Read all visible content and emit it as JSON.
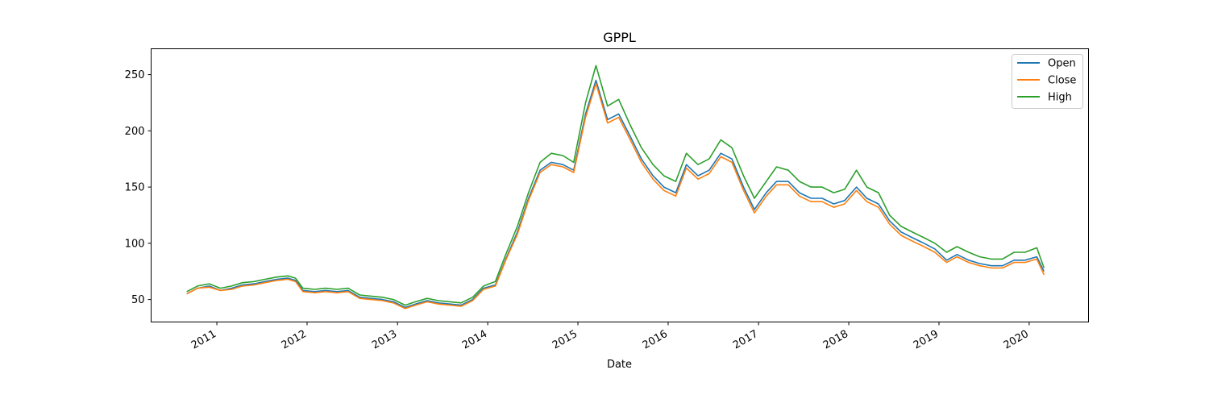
{
  "chart_data": {
    "type": "line",
    "title": "GPPL",
    "xlabel": "Date",
    "ylabel": "",
    "xlim": [
      "2010-04-10",
      "2020-08-28"
    ],
    "ylim": [
      30,
      273
    ],
    "x_ticks": [
      "2011",
      "2012",
      "2013",
      "2014",
      "2015",
      "2016",
      "2017",
      "2018",
      "2019",
      "2020"
    ],
    "y_ticks": [
      50,
      100,
      150,
      200,
      250
    ],
    "grid": false,
    "legend": "top-right",
    "x": [
      "2010-09-01",
      "2010-10-15",
      "2010-12-01",
      "2011-01-15",
      "2011-03-01",
      "2011-04-15",
      "2011-06-01",
      "2011-07-15",
      "2011-09-01",
      "2011-10-15",
      "2011-11-15",
      "2011-12-15",
      "2012-02-01",
      "2012-03-15",
      "2012-05-01",
      "2012-06-15",
      "2012-08-01",
      "2012-09-15",
      "2012-11-01",
      "2012-12-15",
      "2013-02-01",
      "2013-03-15",
      "2013-05-01",
      "2013-06-15",
      "2013-08-01",
      "2013-09-15",
      "2013-11-01",
      "2013-12-15",
      "2014-02-01",
      "2014-03-15",
      "2014-05-01",
      "2014-06-15",
      "2014-08-01",
      "2014-09-15",
      "2014-11-01",
      "2014-12-15",
      "2015-02-01",
      "2015-03-15",
      "2015-05-01",
      "2015-06-15",
      "2015-08-01",
      "2015-09-15",
      "2015-11-01",
      "2015-12-15",
      "2016-02-01",
      "2016-03-15",
      "2016-05-01",
      "2016-06-15",
      "2016-08-01",
      "2016-09-15",
      "2016-11-01",
      "2016-12-15",
      "2017-02-01",
      "2017-03-15",
      "2017-05-01",
      "2017-06-15",
      "2017-08-01",
      "2017-09-15",
      "2017-11-01",
      "2017-12-15",
      "2018-02-01",
      "2018-03-15",
      "2018-05-01",
      "2018-06-15",
      "2018-08-01",
      "2018-09-15",
      "2018-11-01",
      "2018-12-15",
      "2019-02-01",
      "2019-03-15",
      "2019-05-01",
      "2019-06-15",
      "2019-08-01",
      "2019-09-15",
      "2019-11-01",
      "2019-12-15",
      "2020-02-01",
      "2020-03-01"
    ],
    "series": [
      {
        "name": "Open",
        "color": "#1f77b4",
        "values": [
          55,
          60,
          62,
          58,
          60,
          63,
          64,
          66,
          68,
          69,
          67,
          58,
          57,
          58,
          57,
          58,
          52,
          51,
          50,
          48,
          43,
          46,
          49,
          47,
          46,
          45,
          50,
          60,
          63,
          86,
          110,
          140,
          165,
          172,
          170,
          165,
          215,
          245,
          210,
          215,
          195,
          175,
          160,
          150,
          145,
          170,
          160,
          165,
          180,
          175,
          150,
          130,
          145,
          155,
          155,
          145,
          140,
          140,
          135,
          138,
          150,
          140,
          135,
          120,
          110,
          105,
          100,
          95,
          85,
          90,
          85,
          82,
          80,
          80,
          85,
          85,
          88,
          75
        ]
      },
      {
        "name": "Close",
        "color": "#ff7f0e",
        "values": [
          55,
          60,
          61,
          58,
          59,
          62,
          63,
          65,
          67,
          68,
          66,
          57,
          56,
          57,
          56,
          57,
          51,
          50,
          49,
          47,
          42,
          45,
          48,
          46,
          45,
          44,
          49,
          59,
          62,
          85,
          108,
          138,
          163,
          170,
          168,
          163,
          212,
          242,
          207,
          212,
          192,
          172,
          157,
          147,
          142,
          167,
          157,
          162,
          177,
          172,
          147,
          127,
          142,
          152,
          152,
          142,
          137,
          137,
          132,
          135,
          147,
          137,
          132,
          117,
          107,
          102,
          97,
          92,
          83,
          88,
          83,
          80,
          78,
          78,
          83,
          83,
          86,
          72
        ]
      },
      {
        "name": "High",
        "color": "#2ca02c",
        "values": [
          57,
          62,
          64,
          60,
          62,
          65,
          66,
          68,
          70,
          71,
          69,
          60,
          59,
          60,
          59,
          60,
          54,
          53,
          52,
          50,
          45,
          48,
          51,
          49,
          48,
          47,
          52,
          62,
          66,
          90,
          115,
          145,
          172,
          180,
          178,
          172,
          225,
          258,
          222,
          228,
          205,
          185,
          170,
          160,
          155,
          180,
          170,
          175,
          192,
          185,
          160,
          140,
          155,
          168,
          165,
          155,
          150,
          150,
          145,
          148,
          165,
          150,
          145,
          125,
          115,
          110,
          105,
          100,
          92,
          97,
          92,
          88,
          86,
          86,
          92,
          92,
          96,
          78
        ]
      }
    ]
  }
}
